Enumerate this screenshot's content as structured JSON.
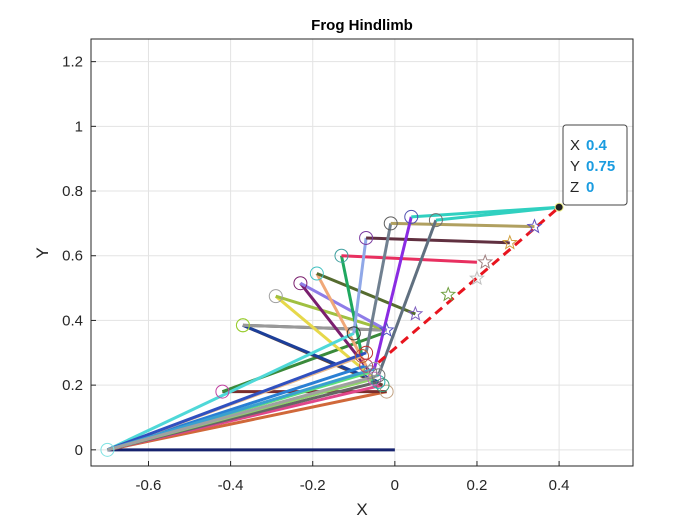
{
  "chart_data": {
    "type": "line",
    "title": "Frog Hindlimb",
    "xlabel": "X",
    "ylabel": "Y",
    "xlim": [
      -0.74,
      0.58
    ],
    "ylim": [
      -0.05,
      1.27
    ],
    "xticks": [
      -0.6,
      -0.4,
      -0.2,
      0,
      0.2,
      0.4
    ],
    "xtick_labels": [
      "-0.6",
      "-0.4",
      "-0.2",
      "0",
      "0.2",
      "0.4"
    ],
    "yticks": [
      0,
      0.2,
      0.4,
      0.6,
      0.8,
      1,
      1.2
    ],
    "ytick_labels": [
      "0",
      "0.2",
      "0.4",
      "0.6",
      "0.8",
      "1",
      "1.2"
    ],
    "grid": true,
    "base_segment": {
      "x": [
        -0.7,
        0.0
      ],
      "y": [
        0.0,
        0.0
      ],
      "color": "#16226e"
    },
    "hip": {
      "x": -0.7,
      "y": 0.0
    },
    "poses": [
      {
        "knee": [
          -0.02,
          0.18
        ],
        "ankle": [
          -0.42,
          0.18
        ],
        "tip": [
          -0.03,
          0.36
        ],
        "thigh_color": "#d0683a",
        "shank_color": "#7a2d2d",
        "foot_color": "#3a8a3a",
        "knee_marker": "#c0a080",
        "ankle_marker": "#c040a0"
      },
      {
        "knee": [
          -0.03,
          0.2
        ],
        "ankle": [
          -0.37,
          0.385
        ],
        "tip": [
          -0.02,
          0.37
        ],
        "thigh_color": "#e0468a",
        "shank_color": "#664433",
        "foot_color": "#555555",
        "knee_marker": "#3a9a7a",
        "ankle_marker": "#9acd32"
      },
      {
        "knee": [
          -0.04,
          0.21
        ],
        "ankle": [
          -0.37,
          0.385
        ],
        "tip": [
          -0.02,
          0.37
        ],
        "thigh_color": "#666666",
        "shank_color": "#1c3f9a",
        "foot_color": "#999999",
        "knee_marker": "#20b2aa",
        "ankle_marker": "#9acd32"
      },
      {
        "knee": [
          -0.05,
          0.22
        ],
        "ankle": [
          -0.29,
          0.475
        ],
        "tip": [
          -0.02,
          0.37
        ],
        "thigh_color": "#8fd46a",
        "shank_color": "#e6d84a",
        "foot_color": "#a0c040",
        "knee_marker": "#c060c0",
        "ankle_marker": "#a0a0a0"
      },
      {
        "knee": [
          -0.06,
          0.24
        ],
        "ankle": [
          -0.23,
          0.515
        ],
        "tip": [
          -0.02,
          0.37
        ],
        "thigh_color": "#5ce07a",
        "shank_color": "#7a1f6e",
        "foot_color": "#8e7ce8",
        "knee_marker": "#888888",
        "ankle_marker": "#7a1f6e"
      },
      {
        "knee": [
          -0.07,
          0.26
        ],
        "ankle": [
          -0.19,
          0.545
        ],
        "tip": [
          0.05,
          0.42
        ],
        "thigh_color": "#2a7fd4",
        "shank_color": "#f0a878",
        "foot_color": "#556b2f",
        "knee_marker": "#c04060",
        "ankle_marker": "#40c0c0"
      },
      {
        "knee": [
          -0.08,
          0.29
        ],
        "ankle": [
          -0.13,
          0.6
        ],
        "tip": [
          0.2,
          0.58
        ],
        "thigh_color": "#e8b88a",
        "shank_color": "#20a860",
        "foot_color": "#e83060",
        "knee_marker": "#c06030",
        "ankle_marker": "#40a0a0"
      },
      {
        "knee": [
          -0.1,
          0.36
        ],
        "ankle": [
          -0.07,
          0.655
        ],
        "tip": [
          0.28,
          0.64
        ],
        "thigh_color": "#4fd8d8",
        "shank_color": "#90a8e8",
        "foot_color": "#603040",
        "knee_marker": "#3a3a3a",
        "ankle_marker": "#7a3aa0"
      },
      {
        "knee": [
          -0.07,
          0.3
        ],
        "ankle": [
          -0.01,
          0.7
        ],
        "tip": [
          0.34,
          0.69
        ],
        "thigh_color": "#3050c0",
        "shank_color": "#708090",
        "foot_color": "#b0a060",
        "knee_marker": "#c03030",
        "ankle_marker": "#606060"
      },
      {
        "knee": [
          -0.05,
          0.25
        ],
        "ankle": [
          0.04,
          0.72
        ],
        "tip": [
          0.4,
          0.75
        ],
        "thigh_color": "#3aa0d0",
        "shank_color": "#8a2be2",
        "foot_color": "#30d0c0",
        "knee_marker": "#a0a0a0",
        "ankle_marker": "#5050b0"
      },
      {
        "knee": [
          -0.04,
          0.23
        ],
        "ankle": [
          0.1,
          0.71
        ],
        "tip": [
          0.4,
          0.75
        ],
        "thigh_color": "#a0a0a0",
        "shank_color": "#607080",
        "foot_color": "#30d0c0",
        "knee_marker": "#707070",
        "ankle_marker": "#707070"
      }
    ],
    "trajectory": {
      "x": [
        -0.04,
        0.4
      ],
      "y": [
        0.27,
        0.75
      ],
      "style": "dashed",
      "color": "#e8141e"
    },
    "tip_markers": [
      {
        "x": -0.02,
        "y": 0.37,
        "color": "#5050c0"
      },
      {
        "x": 0.05,
        "y": 0.42,
        "color": "#8060c0"
      },
      {
        "x": 0.13,
        "y": 0.48,
        "color": "#70a040"
      },
      {
        "x": 0.2,
        "y": 0.53,
        "color": "#c0c0c0"
      },
      {
        "x": 0.22,
        "y": 0.58,
        "color": "#a08080"
      },
      {
        "x": 0.28,
        "y": 0.64,
        "color": "#d0a040"
      },
      {
        "x": 0.34,
        "y": 0.69,
        "color": "#6050c0"
      }
    ],
    "datatip": {
      "point": {
        "x": 0.4,
        "y": 0.75
      },
      "rows": [
        {
          "label": "X",
          "value": "0.4"
        },
        {
          "label": "Y",
          "value": "0.75"
        },
        {
          "label": "Z",
          "value": "0"
        }
      ]
    }
  }
}
